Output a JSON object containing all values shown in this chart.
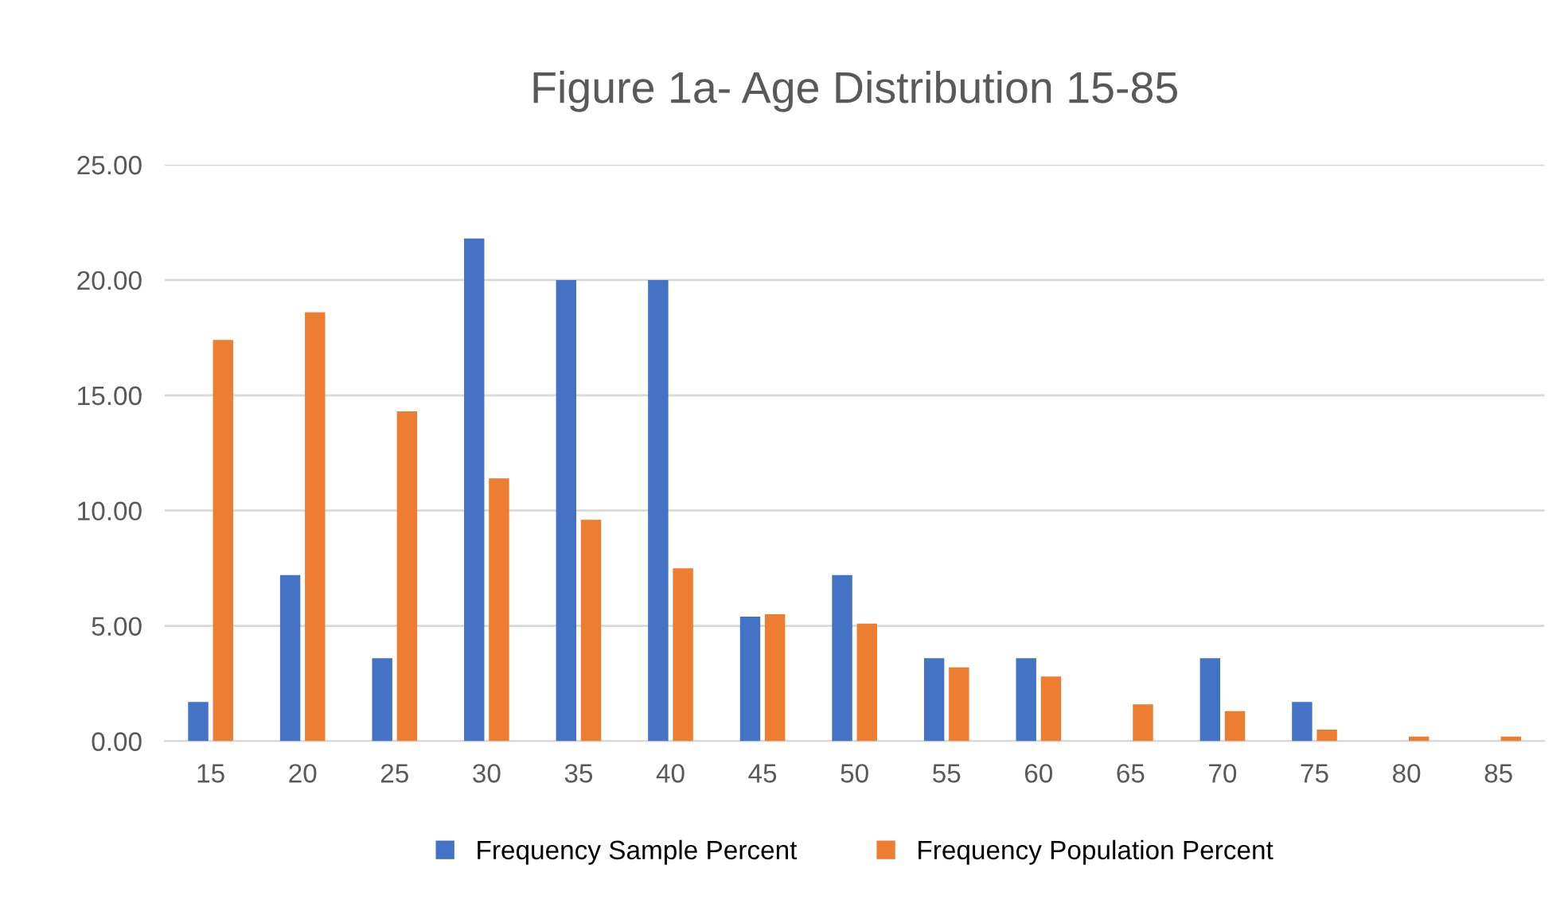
{
  "chart_data": {
    "type": "bar",
    "title": "Figure 1a- Age Distribution 15-85",
    "categories": [
      "15",
      "20",
      "25",
      "30",
      "35",
      "40",
      "45",
      "50",
      "55",
      "60",
      "65",
      "70",
      "75",
      "80",
      "85"
    ],
    "series": [
      {
        "name": "Frequency Sample Percent",
        "color": "#4472c4",
        "values": [
          1.7,
          7.2,
          3.6,
          21.8,
          20.0,
          20.0,
          5.4,
          7.2,
          3.6,
          3.6,
          0,
          3.6,
          1.7,
          0,
          0
        ]
      },
      {
        "name": "Frequency Population Percent",
        "color": "#ed7d31",
        "values": [
          17.4,
          18.6,
          14.3,
          11.4,
          9.6,
          7.5,
          5.5,
          5.1,
          3.2,
          2.8,
          1.6,
          1.3,
          0.5,
          0.2,
          0.2
        ]
      }
    ],
    "ylim": [
      0,
      25
    ],
    "yticks": [
      {
        "value": 0,
        "label": "0.00"
      },
      {
        "value": 5,
        "label": "5.00"
      },
      {
        "value": 10,
        "label": "10.00"
      },
      {
        "value": 15,
        "label": "15.00"
      },
      {
        "value": 20,
        "label": "20.00"
      },
      {
        "value": 25,
        "label": "25.00"
      }
    ],
    "grid": "y",
    "legend": "bottom"
  }
}
